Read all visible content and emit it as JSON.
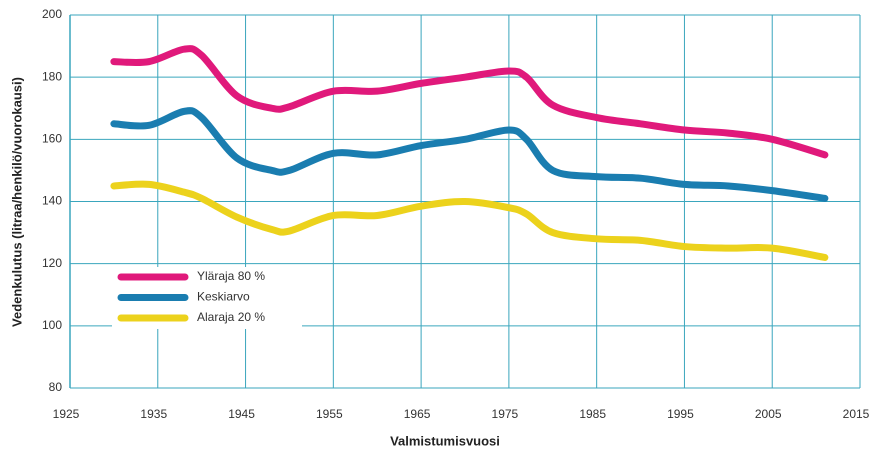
{
  "chart_data": {
    "type": "line",
    "xlabel": "Valmistumisvuosi",
    "ylabel": "Vedenkulutus (litraa/henkilö/vuorokausi)",
    "x": [
      1930,
      1934,
      1938,
      1940,
      1944,
      1948,
      1950,
      1955,
      1960,
      1965,
      1970,
      1975,
      1977,
      1980,
      1985,
      1990,
      1995,
      2000,
      2005,
      2011
    ],
    "series": [
      {
        "name": "Yläraja 80 %",
        "color": "#e0197b",
        "values": [
          185,
          185,
          189,
          187,
          174,
          170,
          170.5,
          175.5,
          175.5,
          178,
          180,
          182,
          180,
          171,
          167,
          165,
          163,
          162,
          160,
          155
        ]
      },
      {
        "name": "Keskiarvo",
        "color": "#1a7db0",
        "values": [
          165,
          164.5,
          169,
          167,
          154,
          150,
          150,
          155.5,
          155,
          158,
          160,
          163,
          160,
          150,
          148,
          147.5,
          145.5,
          145,
          143.5,
          141
        ]
      },
      {
        "name": "Alaraja 20 %",
        "color": "#ecd21c",
        "values": [
          145,
          145.5,
          143,
          141,
          135,
          131,
          130.5,
          135.5,
          135.5,
          138.5,
          140,
          138,
          136,
          130,
          128,
          127.5,
          125.5,
          125,
          125,
          122
        ]
      }
    ],
    "xlim": [
      1925,
      2015
    ],
    "xticks": [
      1925,
      1935,
      1945,
      1955,
      1965,
      1975,
      1985,
      1995,
      2005,
      2015
    ],
    "ylim": [
      80,
      200
    ],
    "yticks": [
      80,
      100,
      120,
      140,
      160,
      180,
      200
    ],
    "grid": true,
    "legend": "lower left"
  }
}
